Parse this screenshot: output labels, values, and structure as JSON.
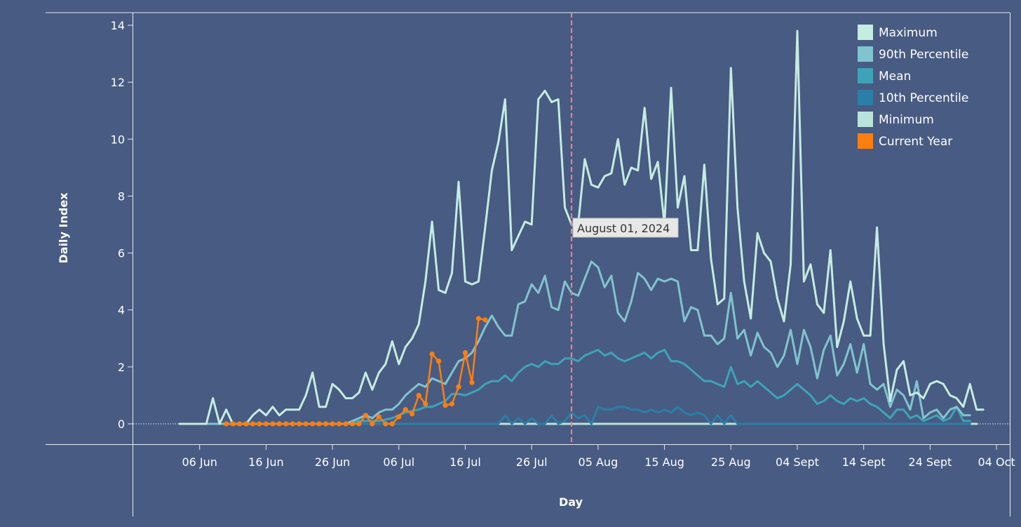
{
  "chart_data": {
    "type": "line",
    "xlabel": "Day",
    "ylabel": "Daily Index",
    "ylim": [
      0,
      14
    ],
    "x_range": [
      "2024-05-27",
      "2024-10-06"
    ],
    "y_ticks": [
      0,
      2,
      4,
      6,
      8,
      10,
      12,
      14
    ],
    "x_ticks": [
      {
        "date": "2024-06-06",
        "label": "06 Jun"
      },
      {
        "date": "2024-06-16",
        "label": "16 Jun"
      },
      {
        "date": "2024-06-26",
        "label": "26 Jun"
      },
      {
        "date": "2024-07-06",
        "label": "06 Jul"
      },
      {
        "date": "2024-07-16",
        "label": "16 Jul"
      },
      {
        "date": "2024-07-26",
        "label": "26 Jul"
      },
      {
        "date": "2024-08-05",
        "label": "05 Aug"
      },
      {
        "date": "2024-08-15",
        "label": "15 Aug"
      },
      {
        "date": "2024-08-25",
        "label": "25 Aug"
      },
      {
        "date": "2024-09-04",
        "label": "04 Sept"
      },
      {
        "date": "2024-09-14",
        "label": "14 Sept"
      },
      {
        "date": "2024-09-24",
        "label": "24 Sept"
      },
      {
        "date": "2024-10-04",
        "label": "04 Oct"
      }
    ],
    "reference_line": {
      "date": "2024-08-01",
      "label": "August 01, 2024",
      "color": "#f08080"
    },
    "legend_position": "top-right",
    "series": [
      {
        "name": "Maximum",
        "color": "#c5ece0",
        "start": "2024-06-03",
        "values": [
          0,
          0,
          0,
          0,
          0,
          0.9,
          0,
          0.5,
          0,
          0,
          0,
          0.3,
          0.5,
          0.3,
          0.6,
          0.3,
          0.5,
          0.5,
          0.5,
          1,
          1.8,
          0.6,
          0.6,
          1.4,
          1.2,
          0.9,
          0.9,
          1.1,
          1.8,
          1.2,
          1.8,
          2.1,
          2.9,
          2.1,
          2.7,
          3,
          3.5,
          5,
          7.1,
          4.7,
          4.6,
          5.3,
          8.5,
          5,
          4.9,
          5,
          6.9,
          8.9,
          9.9,
          11.4,
          6.1,
          6.6,
          7.1,
          7,
          11.4,
          11.7,
          11.3,
          11.4,
          7.6,
          7,
          7,
          9.3,
          8.4,
          8.3,
          8.7,
          8.8,
          10,
          8.4,
          9,
          8.9,
          11.1,
          8.6,
          9.2,
          7,
          11.8,
          7.6,
          8.7,
          6.1,
          6.1,
          9.1,
          5.8,
          4.2,
          4.4,
          12.5,
          7.6,
          5,
          3.7,
          6.7,
          6,
          5.7,
          4.4,
          3.6,
          5.6,
          13.8,
          5,
          5.6,
          4.2,
          3.9,
          6.1,
          2.7,
          3.6,
          5,
          3.7,
          3.1,
          3.1,
          6.9,
          2.8,
          0.8,
          1.9,
          2.2,
          1,
          1.1,
          0.9,
          1.4,
          1.5,
          1.4,
          1,
          0.9,
          0.6,
          1.4,
          0.5,
          0.5
        ]
      },
      {
        "name": "90th Percentile",
        "color": "#80c4cf",
        "start": "2024-06-03",
        "values": [
          0,
          0,
          0,
          0,
          0,
          0,
          0,
          0,
          0,
          0,
          0,
          0,
          0,
          0,
          0,
          0,
          0,
          0,
          0,
          0,
          0,
          0,
          0,
          0,
          0,
          0,
          0.1,
          0.2,
          0.3,
          0.2,
          0.4,
          0.5,
          0.5,
          0.7,
          1,
          1.2,
          1.4,
          1.3,
          1.6,
          1.5,
          1.4,
          1.8,
          2.2,
          2.3,
          2.5,
          2.9,
          3.4,
          3.8,
          3.4,
          3.1,
          3.1,
          4.2,
          4.3,
          4.9,
          4.6,
          5.2,
          4.1,
          4,
          5,
          4.6,
          4.5,
          5.1,
          5.7,
          5.5,
          4.8,
          5.2,
          3.9,
          3.6,
          4.3,
          5.3,
          5.1,
          4.7,
          5.1,
          5,
          5.1,
          5,
          3.6,
          4.1,
          4,
          3.1,
          3.1,
          2.8,
          3,
          4.6,
          3,
          3.3,
          2.4,
          3.2,
          2.7,
          2.5,
          2,
          2.4,
          3.3,
          2.1,
          3.3,
          2.7,
          1.6,
          2.6,
          3.1,
          1.7,
          2.1,
          2.8,
          1.8,
          2.8,
          1.4,
          1.2,
          1.4,
          0.6,
          1.2,
          1,
          0.5,
          1.5,
          0.2,
          0.4,
          0.5,
          0.2,
          0.5,
          0.6,
          0.3,
          0.3
        ]
      },
      {
        "name": "Mean",
        "color": "#3fa3b8",
        "start": "2024-06-03",
        "values": [
          0,
          0,
          0,
          0,
          0,
          0,
          0,
          0,
          0,
          0,
          0,
          0,
          0,
          0,
          0,
          0,
          0,
          0,
          0,
          0,
          0,
          0,
          0,
          0,
          0,
          0,
          0.05,
          0.1,
          0.1,
          0.1,
          0.1,
          0.15,
          0.2,
          0.3,
          0.4,
          0.45,
          0.5,
          0.6,
          0.6,
          0.7,
          0.8,
          1.05,
          1.05,
          1,
          1.1,
          1.2,
          1.4,
          1.5,
          1.5,
          1.7,
          1.5,
          1.8,
          2,
          2.1,
          2,
          2.2,
          2.1,
          2.1,
          2.3,
          2.3,
          2.2,
          2.4,
          2.5,
          2.6,
          2.4,
          2.5,
          2.3,
          2.2,
          2.3,
          2.4,
          2.5,
          2.3,
          2.5,
          2.6,
          2.2,
          2.2,
          2.1,
          1.9,
          1.7,
          1.5,
          1.5,
          1.4,
          1.3,
          2,
          1.4,
          1.5,
          1.3,
          1.5,
          1.3,
          1.1,
          0.9,
          1,
          1.2,
          1.4,
          1.2,
          1,
          0.7,
          0.8,
          1,
          0.8,
          0.7,
          0.9,
          0.8,
          0.9,
          0.7,
          0.6,
          0.4,
          0.2,
          0.5,
          0.5,
          0.2,
          0.3,
          0.1,
          0.2,
          0.3,
          0.1,
          0.2,
          0.6,
          0.1,
          0.1
        ]
      },
      {
        "name": "10th Percentile",
        "color": "#2b7fa6",
        "start": "2024-06-03",
        "values": [
          0,
          0,
          0,
          0,
          0,
          0,
          0,
          0,
          0,
          0,
          0,
          0,
          0,
          0,
          0,
          0,
          0,
          0,
          0,
          0,
          0,
          0,
          0,
          0,
          0,
          0,
          0,
          0,
          0,
          0,
          0,
          0,
          0,
          0,
          0,
          0,
          0,
          0,
          0,
          0,
          0,
          0,
          0,
          0,
          0,
          0,
          0,
          0,
          0,
          0.3,
          0,
          0.2,
          0,
          0.2,
          0,
          0,
          0.3,
          0,
          0.1,
          0.4,
          0.2,
          0.3,
          0,
          0.6,
          0.5,
          0.5,
          0.6,
          0.6,
          0.5,
          0.5,
          0.4,
          0.5,
          0.4,
          0.5,
          0.4,
          0.6,
          0.4,
          0.3,
          0.4,
          0.3,
          0,
          0.3,
          0,
          0.3,
          0,
          0,
          0,
          0,
          0,
          0,
          0,
          0,
          0,
          0,
          0,
          0,
          0,
          0,
          0,
          0,
          0,
          0,
          0,
          0,
          0,
          0,
          0,
          0,
          0,
          0,
          0,
          0,
          0,
          0,
          0,
          0,
          0,
          0,
          0,
          0
        ]
      },
      {
        "name": "Minimum",
        "color": "#b9e4dc",
        "start": "2024-06-03",
        "values": [
          0,
          0,
          0,
          0,
          0,
          0,
          0,
          0,
          0,
          0,
          0,
          0,
          0,
          0,
          0,
          0,
          0,
          0,
          0,
          0,
          0,
          0,
          0,
          0,
          0,
          0,
          0,
          0,
          0,
          0,
          0,
          0,
          0,
          0,
          0,
          0,
          0,
          0,
          0,
          0,
          0,
          0,
          0,
          0,
          0,
          0,
          0,
          0,
          0,
          0,
          0,
          0,
          0,
          0,
          0,
          0,
          0,
          0,
          0,
          0,
          0,
          0,
          0,
          0,
          0,
          0,
          0,
          0,
          0,
          0,
          0,
          0,
          0,
          0,
          0,
          0,
          0,
          0,
          0,
          0,
          0,
          0,
          0,
          0,
          0,
          0,
          0,
          0,
          0,
          0,
          0,
          0,
          0,
          0,
          0,
          0,
          0,
          0,
          0,
          0,
          0,
          0,
          0,
          0,
          0,
          0,
          0,
          0,
          0,
          0,
          0,
          0,
          0,
          0,
          0,
          0,
          0,
          0,
          0,
          0,
          0
        ]
      },
      {
        "name": "Current Year",
        "color": "#ff7f0e",
        "start": "2024-06-10",
        "values": [
          0,
          0,
          0,
          0,
          0,
          0,
          0,
          0,
          0,
          0,
          0,
          0,
          0,
          0,
          0,
          0,
          0,
          0,
          0,
          0,
          0,
          0.3,
          0,
          0.25,
          0,
          0,
          0.25,
          0.5,
          0.35,
          1,
          0.7,
          2.45,
          2.2,
          0.65,
          0.7,
          1.3,
          2.5,
          1.45,
          3.7,
          3.65
        ]
      }
    ]
  }
}
